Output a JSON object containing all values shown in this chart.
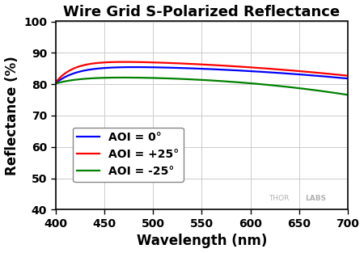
{
  "title": "Wire Grid S-Polarized Reflectance",
  "xlabel": "Wavelength (nm)",
  "ylabel": "Reflectance (%)",
  "xlim": [
    400,
    700
  ],
  "ylim": [
    40,
    100
  ],
  "yticks": [
    40,
    50,
    60,
    70,
    80,
    90,
    100
  ],
  "xticks": [
    400,
    450,
    500,
    550,
    600,
    650,
    700
  ],
  "legend": [
    {
      "label": "AOI = 0°",
      "color": "#0000ff"
    },
    {
      "label": "AOI = +25°",
      "color": "#ff0000"
    },
    {
      "label": "AOI = -25°",
      "color": "#008000"
    }
  ],
  "bg_color": "#ffffff",
  "grid_color": "#cccccc",
  "title_fontsize": 13,
  "axis_label_fontsize": 12,
  "tick_fontsize": 10,
  "legend_fontsize": 10,
  "line_width": 1.6
}
